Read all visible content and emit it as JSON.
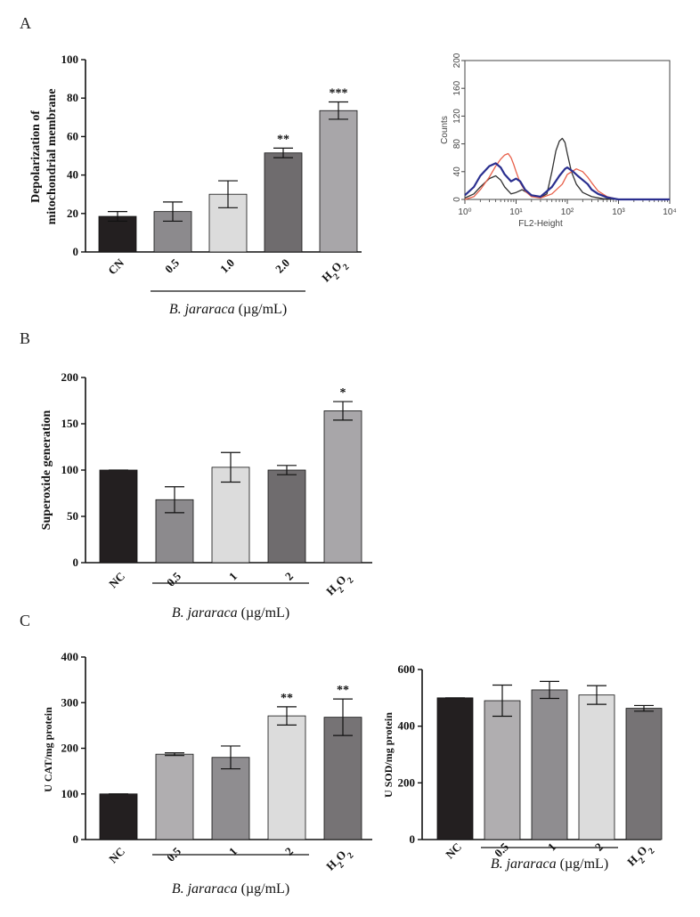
{
  "figure": {
    "panel_labels": [
      "A",
      "B",
      "C"
    ],
    "group_label_italic": "B. jararaca",
    "group_label_unit": "(µg/mL)"
  },
  "chart_data": [
    {
      "id": "A-bar",
      "type": "bar",
      "ylabel_lines": [
        "Depolarization of",
        "mitochondrial membrane"
      ],
      "categories": [
        "CN",
        "0.5",
        "1.0",
        "2.0",
        "H2O2"
      ],
      "values": [
        18.5,
        21,
        30,
        51.5,
        73.5
      ],
      "errors": [
        2.5,
        5,
        7,
        2.5,
        4.5
      ],
      "significance": [
        "",
        "",
        "",
        "**",
        "***"
      ],
      "colors": [
        "#231f20",
        "#8c8a8d",
        "#dcdcdc",
        "#6f6c6e",
        "#a8a6a9"
      ],
      "ylim": [
        0,
        100
      ],
      "yticks": [
        0,
        20,
        40,
        60,
        80,
        100
      ],
      "group_bracket": [
        1,
        3
      ]
    },
    {
      "id": "A-flow",
      "type": "line",
      "ylabel": "Counts",
      "xlabel": "FL2-Height",
      "xscale": "log",
      "xlim": [
        1,
        10000
      ],
      "ylim": [
        0,
        200
      ],
      "yticks": [
        0,
        40,
        80,
        120,
        160,
        200
      ],
      "xticks": [
        "10⁰",
        "10¹",
        "10²",
        "10³",
        "10⁴"
      ],
      "series": [
        {
          "color": "#333333",
          "x": [
            1,
            1.5,
            2,
            3,
            4,
            5,
            6,
            8,
            10,
            13,
            20,
            30,
            40,
            50,
            60,
            70,
            80,
            90,
            100,
            120,
            150,
            200,
            300,
            500,
            1000,
            10000
          ],
          "y": [
            2,
            8,
            18,
            30,
            34,
            28,
            18,
            8,
            10,
            14,
            6,
            3,
            8,
            40,
            70,
            84,
            88,
            82,
            66,
            40,
            22,
            10,
            4,
            1,
            0,
            0
          ]
        },
        {
          "color": "#e8604a",
          "x": [
            1,
            1.5,
            2,
            3,
            4,
            5,
            6,
            7,
            8,
            9,
            10,
            12,
            15,
            20,
            30,
            50,
            80,
            100,
            150,
            200,
            250,
            300,
            400,
            600,
            1000,
            10000
          ],
          "y": [
            0,
            4,
            14,
            32,
            48,
            58,
            64,
            66,
            60,
            50,
            40,
            24,
            12,
            4,
            2,
            8,
            22,
            36,
            44,
            40,
            32,
            24,
            12,
            4,
            0,
            0
          ]
        },
        {
          "color": "#2a2f8f",
          "x": [
            1,
            1.5,
            2,
            3,
            4,
            5,
            6,
            8,
            10,
            12,
            15,
            20,
            30,
            50,
            70,
            90,
            100,
            130,
            160,
            200,
            250,
            300,
            400,
            600,
            1000,
            10000
          ],
          "y": [
            6,
            18,
            34,
            48,
            52,
            46,
            36,
            26,
            30,
            26,
            14,
            6,
            4,
            18,
            34,
            44,
            46,
            40,
            34,
            28,
            22,
            14,
            8,
            3,
            0,
            0
          ]
        }
      ]
    },
    {
      "id": "B-bar",
      "type": "bar",
      "ylabel": "Superoxide generation",
      "categories": [
        "NC",
        "0.5",
        "1",
        "2",
        "H2O2"
      ],
      "values": [
        100,
        68,
        103,
        100,
        164
      ],
      "errors": [
        0,
        14,
        16,
        5,
        10
      ],
      "significance": [
        "",
        "",
        "",
        "",
        "*"
      ],
      "colors": [
        "#231f20",
        "#8c8a8d",
        "#dcdcdc",
        "#6f6c6e",
        "#a8a6a9"
      ],
      "ylim": [
        0,
        200
      ],
      "yticks": [
        0,
        50,
        100,
        150,
        200
      ],
      "group_bracket": [
        1,
        3
      ]
    },
    {
      "id": "C-cat",
      "type": "bar",
      "ylabel": "U CAT/mg protein",
      "categories": [
        "NC",
        "0.5",
        "1",
        "2",
        "H2O2"
      ],
      "values": [
        100,
        187,
        180,
        271,
        268
      ],
      "errors": [
        0,
        3,
        25,
        20,
        40
      ],
      "significance": [
        "",
        "",
        "",
        "**",
        "**"
      ],
      "colors": [
        "#231f20",
        "#b0aeb0",
        "#8f8d90",
        "#dcdcdc",
        "#767375"
      ],
      "ylim": [
        0,
        400
      ],
      "yticks": [
        0,
        100,
        200,
        300,
        400
      ],
      "group_bracket": [
        1,
        3
      ]
    },
    {
      "id": "C-sod",
      "type": "bar",
      "ylabel": "U SOD/mg protein",
      "categories": [
        "NC",
        "0.5",
        "1",
        "2",
        "H2O2"
      ],
      "values": [
        500,
        490,
        528,
        510,
        463
      ],
      "errors": [
        0,
        55,
        30,
        33,
        10
      ],
      "significance": [
        "",
        "",
        "",
        "",
        ""
      ],
      "colors": [
        "#231f20",
        "#b0aeb0",
        "#8f8d90",
        "#dcdcdc",
        "#767375"
      ],
      "ylim": [
        0,
        600
      ],
      "yticks": [
        0,
        200,
        400,
        600
      ],
      "group_bracket": [
        1,
        3
      ]
    }
  ]
}
